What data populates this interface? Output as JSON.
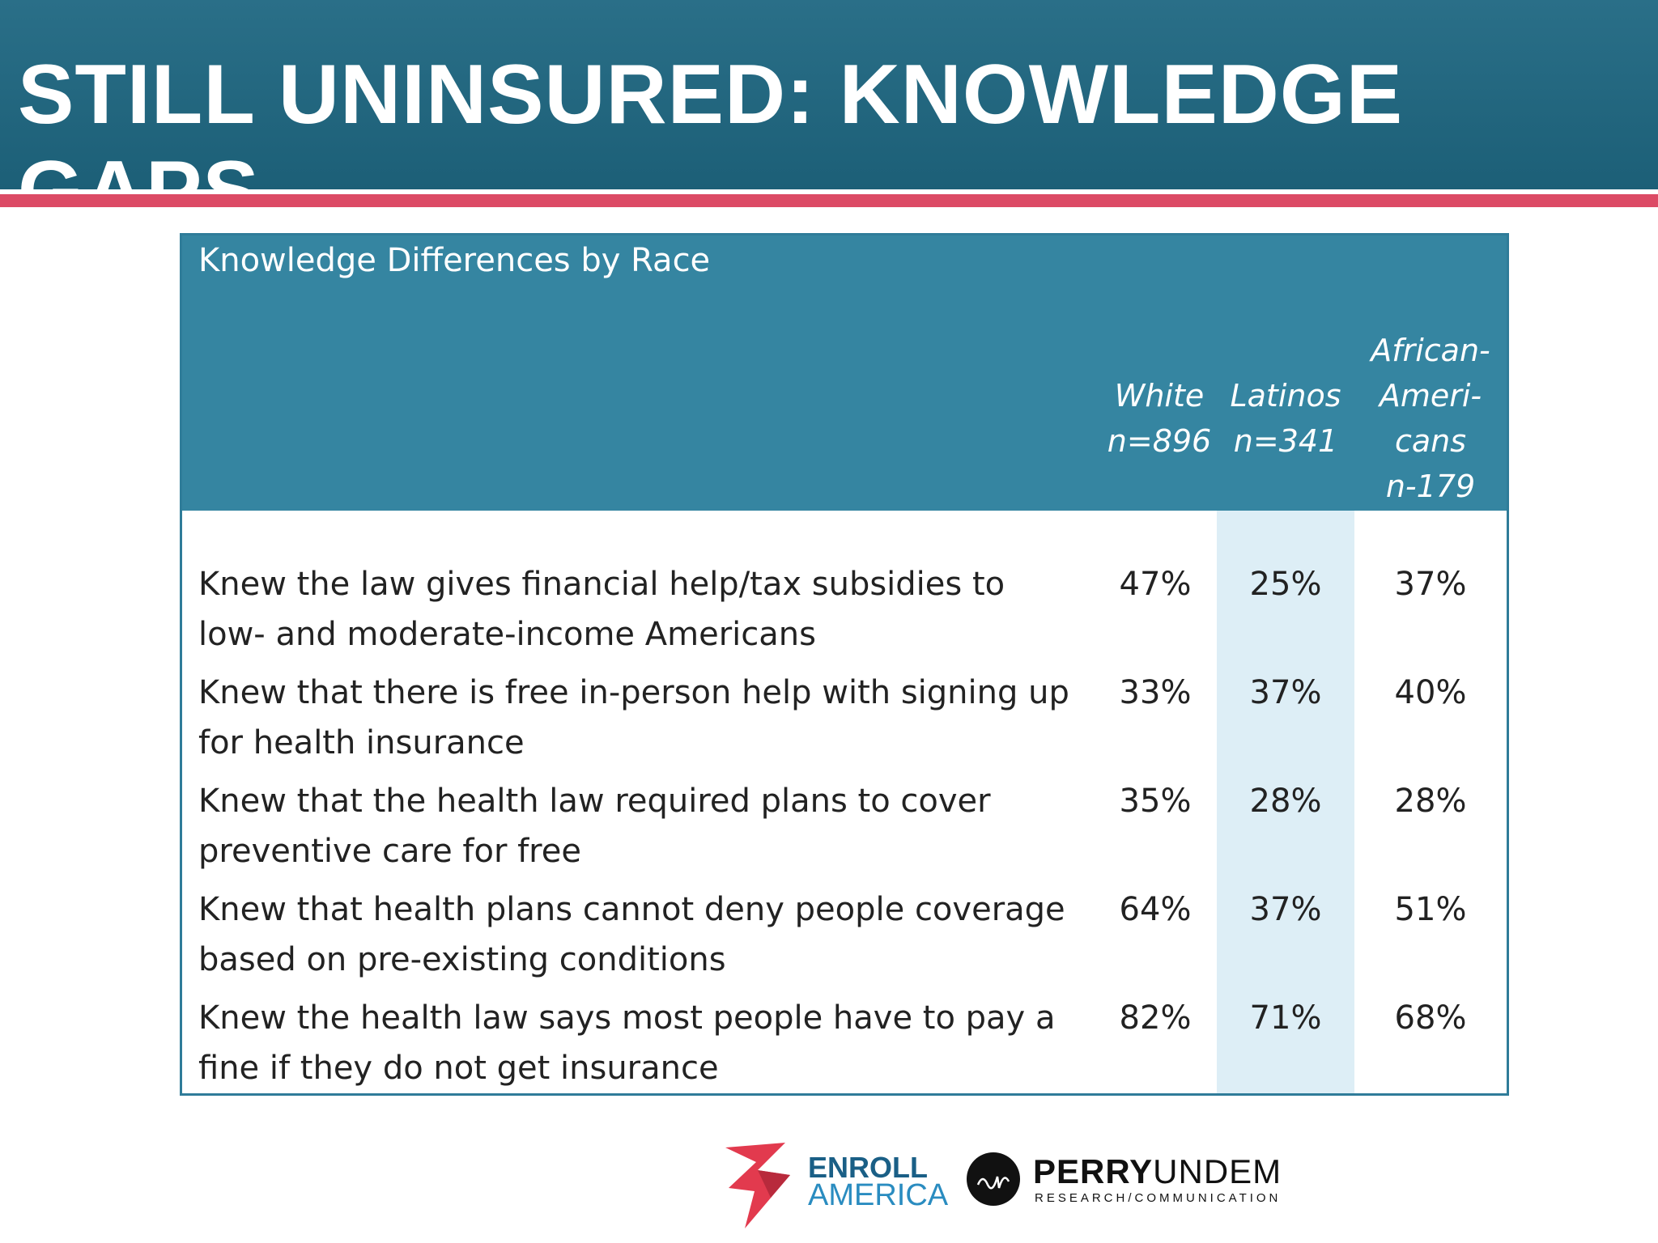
{
  "header": {
    "title": "STILL UNINSURED: KNOWLEDGE GAPS"
  },
  "table": {
    "caption": "Knowledge Differences by Race",
    "columns": [
      {
        "lines": [
          "White",
          "n=896"
        ]
      },
      {
        "lines": [
          "Latinos",
          "n=341"
        ]
      },
      {
        "lines": [
          "African-",
          "Ameri-",
          "cans",
          "n-179"
        ]
      }
    ],
    "rows": [
      {
        "lines": [
          "Knew the law gives financial help/tax subsidies to",
          "low- and moderate-income Americans"
        ],
        "values": [
          "47%",
          "25%",
          "37%"
        ]
      },
      {
        "lines": [
          "Knew that there is free in-person help with signing up",
          "for health insurance"
        ],
        "values": [
          "33%",
          "37%",
          "40%"
        ]
      },
      {
        "lines": [
          "Knew that the health law required plans to cover",
          "preventive care for free"
        ],
        "values": [
          "35%",
          "28%",
          "28%"
        ]
      },
      {
        "lines": [
          "Knew that health plans cannot deny people coverage",
          "based on pre-existing conditions"
        ],
        "values": [
          "64%",
          "37%",
          "51%"
        ]
      },
      {
        "lines": [
          "Knew the health law says most people have to pay a",
          "fine if they do not get insurance"
        ],
        "values": [
          "82%",
          "71%",
          "68%"
        ]
      }
    ]
  },
  "logos": {
    "enroll": {
      "line1": "ENROLL",
      "line2": "AMERICA"
    },
    "perry": {
      "name_bold": "PERRY",
      "name_light": "UNDEM",
      "sub": "RESEARCH/COMMUNICATION"
    }
  },
  "colors": {
    "header": "#1f6680",
    "stripe": "#dc4a65",
    "table_head": "#3585a1",
    "highlight": "#ddeef6"
  }
}
